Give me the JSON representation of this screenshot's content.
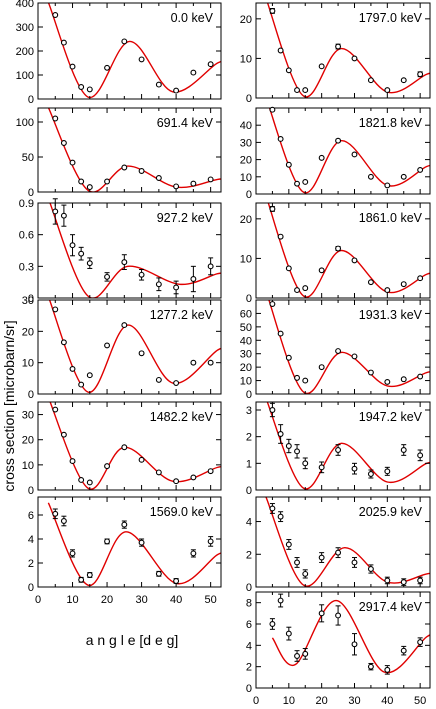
{
  "ylabel": "cross section  [microbarn/sr]",
  "xlabel": "a n g l e [d e g]",
  "x_tick_labels": [
    "0",
    "10",
    "20",
    "30",
    "40",
    "50"
  ],
  "colors": {
    "curve": "#e00000",
    "marker": "#000000",
    "axis": "#000000"
  },
  "chart_data": [
    {
      "type": "scatter",
      "title": "0.0 keV",
      "column": "left",
      "xlim": [
        0,
        53
      ],
      "ylim": [
        0,
        400
      ],
      "yticks": [
        "0",
        "100",
        "200",
        "300",
        "400"
      ],
      "x": [
        5,
        7.5,
        10,
        12.5,
        15,
        20,
        25,
        30,
        35,
        40,
        45,
        50
      ],
      "y": [
        350,
        235,
        135,
        50,
        40,
        130,
        240,
        165,
        60,
        35,
        110,
        145
      ],
      "err": [
        0,
        0,
        0,
        0,
        0,
        0,
        0,
        0,
        0,
        0,
        0,
        0
      ],
      "fit": {
        "ox": [
          12,
          15,
          16
        ],
        "oy": [
          0,
          40,
          15
        ],
        "peaks": [
          [
            26.5,
            240
          ],
          [
            52,
            150
          ]
        ],
        "troughs": [
          [
            39,
            30
          ]
        ]
      }
    },
    {
      "type": "scatter",
      "title": "691.4 keV",
      "column": "left",
      "xlim": [
        0,
        53
      ],
      "ylim": [
        0,
        120
      ],
      "yticks": [
        "0",
        "50",
        "100"
      ],
      "x": [
        5,
        7.5,
        10,
        12.5,
        15,
        20,
        25,
        30,
        35,
        40,
        45,
        50
      ],
      "y": [
        105,
        70,
        42,
        15,
        7,
        15,
        35,
        30,
        20,
        8,
        12,
        18
      ],
      "err": [
        0,
        0,
        0,
        0,
        0,
        0,
        0,
        0,
        0,
        0,
        0,
        0
      ],
      "fit": {
        "ox": [
          12,
          15,
          16
        ],
        "oy": [
          0,
          40,
          5
        ],
        "peaks": [
          [
            26,
            37
          ],
          [
            52,
            18
          ]
        ],
        "troughs": [
          [
            40,
            7
          ]
        ]
      }
    },
    {
      "type": "scatter",
      "title": "927.2 keV",
      "column": "left",
      "xlim": [
        0,
        53
      ],
      "ylim": [
        0,
        0.9
      ],
      "yticks": [
        "0",
        "0.3",
        "0.6",
        "0.9"
      ],
      "x": [
        5,
        7.5,
        10,
        12.5,
        15,
        20,
        25,
        30,
        35,
        40,
        45,
        50
      ],
      "y": [
        0.82,
        0.78,
        0.5,
        0.42,
        0.33,
        0.2,
        0.34,
        0.22,
        0.13,
        0.1,
        0.18,
        0.3
      ],
      "err": [
        0.12,
        0.1,
        0.1,
        0.06,
        0.05,
        0.04,
        0.07,
        0.05,
        0.06,
        0.06,
        0.12,
        0.08
      ],
      "fit": {
        "ox": [
          12,
          15,
          16
        ],
        "oy": [
          0,
          40,
          0.3
        ],
        "peaks": [
          [
            26,
            0.3
          ],
          [
            52,
            0.23
          ]
        ],
        "troughs": [
          [
            41,
            0.13
          ]
        ]
      }
    },
    {
      "type": "scatter",
      "title": "1277.2 keV",
      "column": "left",
      "xlim": [
        0,
        53
      ],
      "ylim": [
        0,
        30
      ],
      "yticks": [
        "0",
        "10",
        "20",
        "30"
      ],
      "x": [
        5,
        7.5,
        10,
        12.5,
        15,
        20,
        25,
        30,
        35,
        40,
        45,
        50
      ],
      "y": [
        27,
        16.5,
        8,
        3,
        6,
        15.5,
        22,
        13,
        4.5,
        3.5,
        10,
        10
      ],
      "err": [
        0,
        0,
        0,
        0,
        0,
        0,
        0,
        0,
        0,
        0,
        0,
        0
      ],
      "fit": {
        "ox": [
          12,
          15,
          16
        ],
        "oy": [
          0,
          40,
          1.5
        ],
        "peaks": [
          [
            26,
            22
          ],
          [
            52,
            14
          ]
        ],
        "troughs": [
          [
            39,
            3.5
          ]
        ]
      }
    },
    {
      "type": "scatter",
      "title": "1482.2 keV",
      "column": "left",
      "xlim": [
        0,
        53
      ],
      "ylim": [
        0,
        35
      ],
      "yticks": [
        "0",
        "10",
        "20",
        "30"
      ],
      "x": [
        5,
        7.5,
        10,
        12.5,
        15,
        20,
        25,
        30,
        35,
        40,
        45,
        50
      ],
      "y": [
        32,
        22,
        11.5,
        4,
        3,
        9.5,
        17,
        12,
        7,
        3.5,
        5,
        7.5
      ],
      "err": [
        0,
        0,
        0,
        0,
        0,
        0,
        0,
        0,
        0,
        0,
        0,
        0
      ],
      "fit": {
        "ox": [
          12,
          15,
          16
        ],
        "oy": [
          0,
          40,
          1.5
        ],
        "peaks": [
          [
            25,
            17
          ],
          [
            52,
            9
          ]
        ],
        "troughs": [
          [
            39,
            3.5
          ]
        ]
      }
    },
    {
      "type": "scatter",
      "title": "1569.0 keV",
      "column": "left",
      "xlim": [
        0,
        53
      ],
      "ylim": [
        0,
        7.5
      ],
      "yticks": [
        "0",
        "2",
        "4",
        "6"
      ],
      "x": [
        5,
        7.5,
        10,
        12.5,
        15,
        20,
        25,
        30,
        35,
        40,
        45,
        50
      ],
      "y": [
        6.1,
        5.5,
        2.8,
        0.6,
        1.0,
        3.8,
        5.2,
        3.7,
        1.1,
        0.5,
        2.8,
        3.8
      ],
      "err": [
        0.4,
        0.4,
        0.3,
        0.2,
        0.2,
        0.2,
        0.3,
        0.3,
        0.2,
        0.2,
        0.3,
        0.4
      ],
      "fit": {
        "ox": [
          12,
          15,
          16
        ],
        "oy": [
          0,
          40,
          0.5
        ],
        "peaks": [
          [
            25.5,
            4.6
          ],
          [
            52,
            2.7
          ]
        ],
        "troughs": [
          [
            40,
            0.3
          ]
        ]
      }
    },
    {
      "type": "scatter",
      "title": "1797.0 keV",
      "column": "right",
      "xlim": [
        0,
        53
      ],
      "ylim": [
        0,
        24
      ],
      "yticks": [
        "0",
        "10",
        "20"
      ],
      "x": [
        5,
        7.5,
        10,
        12.5,
        15,
        20,
        25,
        30,
        35,
        40,
        45,
        50
      ],
      "y": [
        22,
        12,
        7,
        2,
        2,
        8,
        13,
        10,
        4.5,
        2,
        4.5,
        6
      ],
      "err": [
        0.6,
        0,
        0,
        0,
        0,
        0,
        0.6,
        0,
        0,
        0,
        0,
        0.6
      ],
      "fit": {
        "ox": [
          12,
          15,
          16
        ],
        "oy": [
          0,
          40,
          1.5
        ],
        "peaks": [
          [
            26,
            12.5
          ],
          [
            52,
            6
          ]
        ],
        "troughs": [
          [
            40,
            1.5
          ]
        ]
      }
    },
    {
      "type": "scatter",
      "title": "1821.8 keV",
      "column": "right",
      "xlim": [
        0,
        53
      ],
      "ylim": [
        0,
        50
      ],
      "yticks": [
        "0",
        "10",
        "20",
        "30",
        "40"
      ],
      "x": [
        5,
        7.5,
        10,
        12.5,
        15,
        20,
        25,
        30,
        35,
        40,
        45,
        50
      ],
      "y": [
        49,
        32,
        17,
        6,
        7,
        21,
        31,
        23,
        10,
        5,
        10,
        14
      ],
      "err": [
        0,
        0,
        0,
        0,
        0,
        0,
        0.8,
        0,
        0,
        0,
        0,
        0
      ],
      "fit": {
        "ox": [
          12,
          15,
          16
        ],
        "oy": [
          0,
          40,
          3.5
        ],
        "peaks": [
          [
            26,
            31
          ],
          [
            52,
            16
          ]
        ],
        "troughs": [
          [
            40,
            5
          ]
        ]
      }
    },
    {
      "type": "scatter",
      "title": "1861.0 keV",
      "column": "right",
      "xlim": [
        0,
        53
      ],
      "ylim": [
        0,
        24
      ],
      "yticks": [
        "0",
        "10",
        "20"
      ],
      "x": [
        5,
        7.5,
        10,
        12.5,
        15,
        20,
        25,
        30,
        35,
        40,
        45,
        50
      ],
      "y": [
        22.5,
        15.5,
        7.5,
        2,
        2.5,
        7,
        12.5,
        9.5,
        4,
        2,
        3.5,
        5
      ],
      "err": [
        0.6,
        0,
        0,
        0,
        0,
        0,
        0.5,
        0,
        0,
        0,
        0,
        0
      ],
      "fit": {
        "ox": [
          12,
          15,
          16
        ],
        "oy": [
          0,
          40,
          1.5
        ],
        "peaks": [
          [
            26,
            12
          ],
          [
            52,
            6
          ]
        ],
        "troughs": [
          [
            40,
            1.5
          ]
        ]
      }
    },
    {
      "type": "scatter",
      "title": "1931.3 keV",
      "column": "right",
      "xlim": [
        0,
        53
      ],
      "ylim": [
        0,
        70
      ],
      "yticks": [
        "0",
        "10",
        "20",
        "30",
        "40",
        "50",
        "60"
      ],
      "x": [
        5,
        7.5,
        10,
        12.5,
        15,
        20,
        25,
        30,
        35,
        40,
        45,
        50
      ],
      "y": [
        67,
        45,
        27,
        12,
        10,
        20,
        32,
        28,
        16,
        9,
        11,
        13
      ],
      "err": [
        0,
        0,
        0,
        0,
        0,
        0,
        0,
        0,
        0,
        0,
        0,
        0
      ],
      "fit": {
        "ox": [
          12,
          15,
          16
        ],
        "oy": [
          0,
          40,
          7.5
        ],
        "peaks": [
          [
            26,
            31
          ],
          [
            52,
            16
          ]
        ],
        "troughs": [
          [
            40,
            6
          ]
        ]
      }
    },
    {
      "type": "scatter",
      "title": "1947.2 keV",
      "column": "right",
      "xlim": [
        0,
        53
      ],
      "ylim": [
        0,
        3.3
      ],
      "yticks": [
        "0",
        "1",
        "2",
        "3"
      ],
      "x": [
        5,
        7.5,
        10,
        12.5,
        15,
        20,
        25,
        30,
        35,
        40,
        45,
        50
      ],
      "y": [
        3.0,
        2.1,
        1.65,
        1.45,
        1.0,
        0.85,
        1.5,
        0.8,
        0.6,
        0.7,
        1.5,
        1.3
      ],
      "err": [
        0.25,
        0.35,
        0.25,
        0.25,
        0.2,
        0.2,
        0.2,
        0.2,
        0.15,
        0.15,
        0.2,
        0.2
      ],
      "fit": {
        "ox": [
          12,
          15,
          16
        ],
        "oy": [
          0,
          40,
          0.5
        ],
        "peaks": [
          [
            26,
            1.75
          ],
          [
            52,
            1.0
          ]
        ],
        "troughs": [
          [
            40,
            0.3
          ]
        ]
      }
    },
    {
      "type": "scatter",
      "title": "2025.9 keV",
      "column": "right",
      "xlim": [
        0,
        53
      ],
      "ylim": [
        0,
        5.5
      ],
      "yticks": [
        "0",
        "2",
        "4"
      ],
      "x": [
        5,
        7.5,
        10,
        12.5,
        15,
        20,
        25,
        30,
        35,
        40,
        45,
        50
      ],
      "y": [
        4.8,
        4.3,
        2.6,
        1.5,
        0.8,
        1.8,
        2.1,
        1.5,
        1.1,
        0.4,
        0.3,
        0.4
      ],
      "err": [
        0.3,
        0.3,
        0.3,
        0.3,
        0.25,
        0.3,
        0.3,
        0.3,
        0.25,
        0.2,
        0.2,
        0.2
      ],
      "fit": {
        "ox": [
          12,
          15,
          16
        ],
        "oy": [
          0,
          40,
          0.5
        ],
        "peaks": [
          [
            27,
            2.4
          ],
          [
            52,
            0.8
          ]
        ],
        "troughs": [
          [
            40,
            0.3
          ]
        ]
      }
    },
    {
      "type": "scatter",
      "title": "2917.4 keV",
      "column": "right",
      "xlim": [
        0,
        53
      ],
      "ylim": [
        0,
        9
      ],
      "yticks": [
        "0",
        "2",
        "4",
        "6",
        "8"
      ],
      "x": [
        5,
        7.5,
        10,
        12.5,
        15,
        20,
        25,
        30,
        35,
        40,
        45,
        50
      ],
      "y": [
        6,
        8.2,
        5.1,
        3.0,
        3.2,
        7.0,
        6.8,
        4.1,
        2.0,
        1.7,
        3.5,
        4.3
      ],
      "err": [
        0.5,
        0.6,
        0.6,
        0.5,
        0.5,
        0.8,
        0.9,
        1.0,
        0.3,
        0.4,
        0.4,
        0.4
      ],
      "fit": {
        "ox": [
          12,
          15,
          16
        ],
        "oy": [
          0,
          40,
          2.2
        ],
        "peaks": [
          [
            24.5,
            8.2
          ],
          [
            52,
            4.8
          ]
        ],
        "troughs": [
          [
            39,
            1.5
          ]
        ],
        "start": [
          5,
          4.7
        ],
        "firstTrough": [
          12,
          2.2
        ]
      }
    }
  ]
}
